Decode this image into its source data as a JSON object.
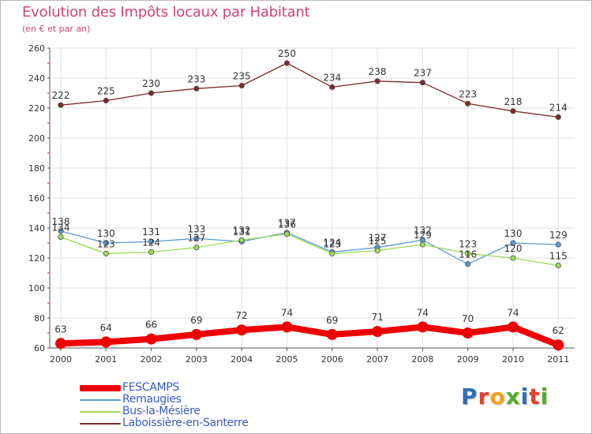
{
  "chart_data": {
    "type": "line",
    "title": "Evolution des Impôts locaux par Habitant",
    "subtitle": "(en € et par an)",
    "xlabel": "",
    "ylabel": "",
    "x": [
      "2000",
      "2001",
      "2002",
      "2003",
      "2004",
      "2005",
      "2006",
      "2007",
      "2008",
      "2009",
      "2010",
      "2011"
    ],
    "ylim": [
      60,
      260
    ],
    "yticks": [
      60,
      80,
      100,
      120,
      140,
      160,
      180,
      200,
      220,
      240,
      260
    ],
    "grid": true,
    "legend_position": "bottom-left",
    "series": [
      {
        "name": "FESCAMPS",
        "color": "#ee0000",
        "line_width": 8,
        "values": [
          63,
          64,
          66,
          69,
          72,
          74,
          69,
          71,
          74,
          70,
          74,
          62
        ]
      },
      {
        "name": "Remaugies",
        "color": "#5b9bd5",
        "line_width": 1.3,
        "values": [
          138,
          130,
          131,
          133,
          131,
          137,
          124,
          127,
          132,
          116,
          130,
          129
        ]
      },
      {
        "name": "Bus-la-Mésière",
        "color": "#99dd55",
        "line_width": 1.3,
        "values": [
          134,
          123,
          124,
          127,
          132,
          136,
          123,
          125,
          129,
          123,
          120,
          115
        ]
      },
      {
        "name": "Laboissière-en-Santerre",
        "color": "#7a2a2a",
        "line_width": 1.3,
        "values": [
          222,
          225,
          230,
          233,
          235,
          250,
          234,
          238,
          237,
          223,
          218,
          214
        ]
      }
    ]
  },
  "brand": {
    "letters": [
      {
        "char": "P",
        "color": "#2d6fb5"
      },
      {
        "char": "r",
        "color": "#e6402e"
      },
      {
        "char": "o",
        "color": "#f3a21c"
      },
      {
        "char": "x",
        "color": "#5aaa2a"
      },
      {
        "char": "i",
        "color": "#2d6fb5"
      },
      {
        "char": "t",
        "color": "#e6402e"
      },
      {
        "char": "i",
        "color": "#5aaa2a"
      }
    ]
  }
}
